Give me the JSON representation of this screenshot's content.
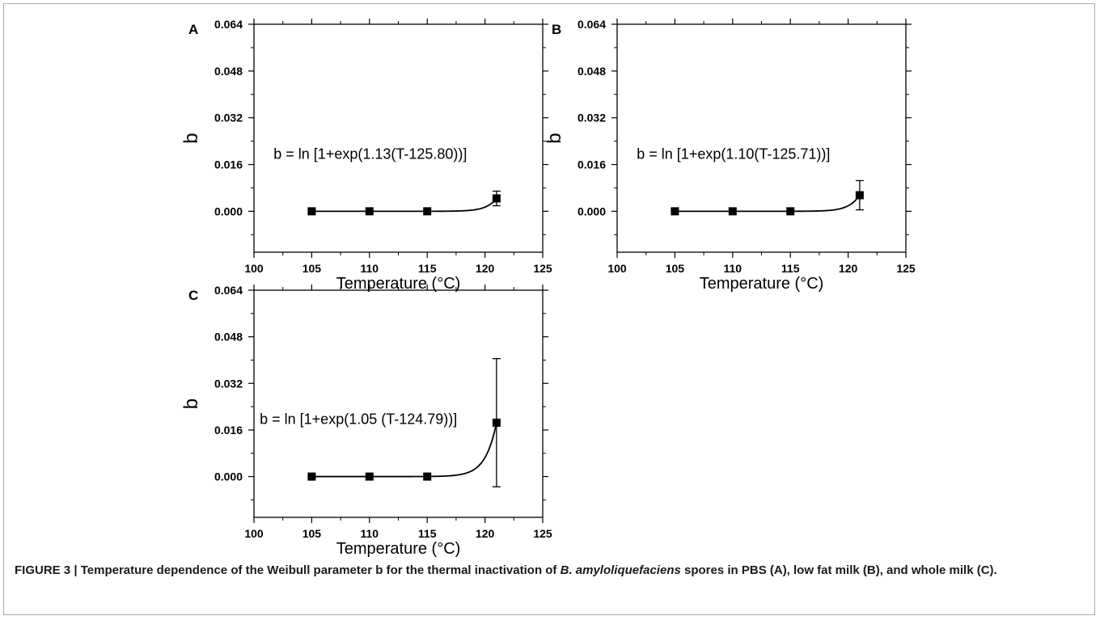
{
  "caption": {
    "prefix": "FIGURE 3 | Temperature dependence of the Weibull parameter b for the thermal inactivation of ",
    "species": "B. amyloliquefaciens",
    "suffix": " spores in PBS (A), low fat milk (B), and whole milk (C)."
  },
  "chart_data": [
    {
      "panel": "A",
      "type": "scatter",
      "xlabel": "Temperature (°C)",
      "ylabel": "b",
      "xlim": [
        100,
        125
      ],
      "ylim": [
        -0.014,
        0.064
      ],
      "xticks": [
        "100",
        "105",
        "110",
        "115",
        "120",
        "125"
      ],
      "yticks": [
        "0.000",
        "0.016",
        "0.032",
        "0.048",
        "0.064"
      ],
      "equation": "b = ln [1+exp(1.13(T-125.80))]",
      "fit": {
        "a": 1.13,
        "Tc": 125.8
      },
      "points": [
        {
          "x": 105,
          "y": 0.0,
          "err": 0
        },
        {
          "x": 110,
          "y": 0.0,
          "err": 0
        },
        {
          "x": 115,
          "y": 0.0,
          "err": 0
        },
        {
          "x": 121,
          "y": 0.0044,
          "err": 0.0025
        }
      ]
    },
    {
      "panel": "B",
      "type": "scatter",
      "xlabel": "Temperature (°C)",
      "ylabel": "b",
      "xlim": [
        100,
        125
      ],
      "ylim": [
        -0.014,
        0.064
      ],
      "xticks": [
        "100",
        "105",
        "110",
        "115",
        "120",
        "125"
      ],
      "yticks": [
        "0.000",
        "0.016",
        "0.032",
        "0.048",
        "0.064"
      ],
      "equation": "b = ln [1+exp(1.10(T-125.71))]",
      "fit": {
        "a": 1.1,
        "Tc": 125.71
      },
      "points": [
        {
          "x": 105,
          "y": 0.0,
          "err": 0
        },
        {
          "x": 110,
          "y": 0.0,
          "err": 0
        },
        {
          "x": 115,
          "y": 0.0,
          "err": 0
        },
        {
          "x": 121,
          "y": 0.0055,
          "err": 0.005
        }
      ]
    },
    {
      "panel": "C",
      "type": "scatter",
      "xlabel": "Temperature (°C)",
      "ylabel": "b",
      "xlim": [
        100,
        125
      ],
      "ylim": [
        -0.014,
        0.064
      ],
      "xticks": [
        "100",
        "105",
        "110",
        "115",
        "120",
        "125"
      ],
      "yticks": [
        "0.000",
        "0.016",
        "0.032",
        "0.048",
        "0.064"
      ],
      "equation": "b = ln [1+exp(1.05 (T-124.79))]",
      "fit": {
        "a": 1.05,
        "Tc": 124.79
      },
      "points": [
        {
          "x": 105,
          "y": 0.0,
          "err": 0
        },
        {
          "x": 110,
          "y": 0.0,
          "err": 0
        },
        {
          "x": 115,
          "y": 0.0,
          "err": 0
        },
        {
          "x": 121,
          "y": 0.0185,
          "err": 0.022
        }
      ]
    }
  ]
}
